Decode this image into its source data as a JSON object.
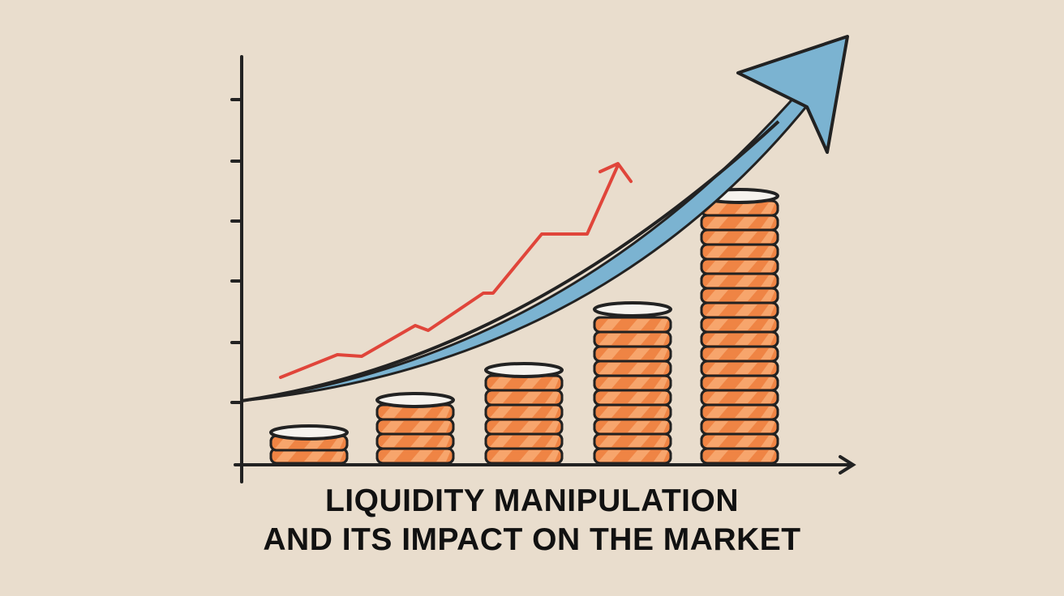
{
  "title": {
    "lines": [
      "LIQUIDITY MANIPULATION",
      "AND ITS IMPACT ON THE MARKET"
    ]
  }
}
